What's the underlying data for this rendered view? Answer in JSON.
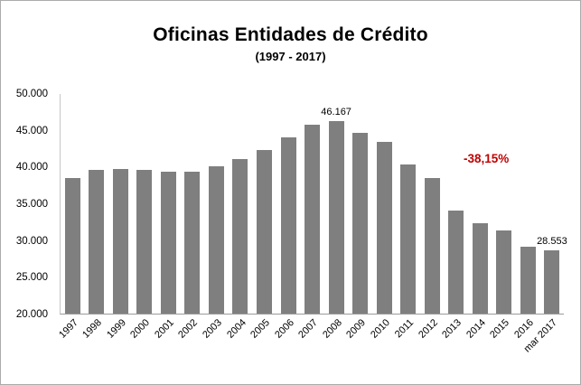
{
  "chart_data": {
    "type": "bar",
    "title": "Oficinas  Entidades de Crédito",
    "subtitle": "(1997 - 2017)",
    "categories": [
      "1997",
      "1998",
      "1999",
      "2000",
      "2001",
      "2002",
      "2003",
      "2004",
      "2005",
      "2006",
      "2007",
      "2008",
      "2009",
      "2010",
      "2011",
      "2012",
      "2013",
      "2014",
      "2015",
      "2016",
      "mar 2017"
    ],
    "values": [
      38400,
      39500,
      39700,
      39600,
      39300,
      39300,
      40000,
      41000,
      42200,
      44000,
      45700,
      46167,
      44600,
      43400,
      40300,
      38400,
      34000,
      32300,
      31300,
      29100,
      28553
    ],
    "bar_color": "#7f7f7f",
    "ylim": [
      20000,
      50000
    ],
    "ytick_step": 5000,
    "ytick_labels": [
      "20.000",
      "25.000",
      "30.000",
      "35.000",
      "40.000",
      "45.000",
      "50.000"
    ],
    "grid": false,
    "legend": "none",
    "xlabel": "",
    "ylabel": "",
    "data_labels": [
      {
        "index": 11,
        "text": "46.167"
      },
      {
        "index": 20,
        "text": "28.553"
      }
    ],
    "annotation": {
      "text": "-38,15%",
      "color": "#C00000"
    }
  }
}
